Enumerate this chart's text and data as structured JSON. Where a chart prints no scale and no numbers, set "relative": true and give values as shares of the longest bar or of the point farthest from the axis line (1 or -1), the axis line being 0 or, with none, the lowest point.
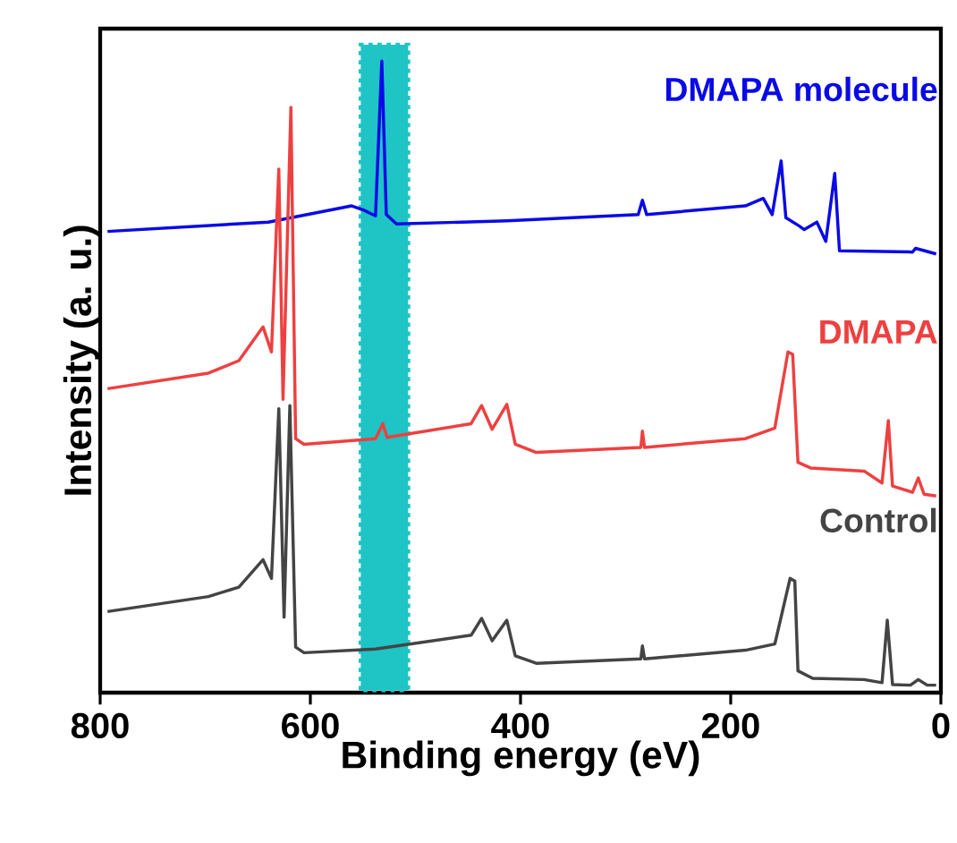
{
  "chart_data": {
    "type": "line",
    "relative": true,
    "xlabel": "Binding energy (eV)",
    "ylabel": "Intensity (a. u.)",
    "xlim": [
      800,
      0
    ],
    "xticks": [
      800,
      600,
      400,
      200,
      0
    ],
    "tick_labels": "x",
    "grid": false,
    "marker": "none",
    "line_style": "solid",
    "bands": [
      {
        "axis": "x",
        "from": 552,
        "to": 507,
        "color": "#1fc4c4"
      }
    ],
    "series": [
      {
        "name": "DMAPA molecule",
        "color": "#0a0ae6",
        "x": [
          793,
          640,
          560.6,
          549,
          538,
          532,
          527.7,
          518,
          413,
          288,
          284,
          280,
          186,
          169,
          160.5,
          152,
          147.5,
          135,
          130,
          118,
          109.5,
          101,
          96.5,
          27,
          24,
          4.5
        ],
        "values": [
          0.727,
          0.742,
          0.768,
          0.761,
          0.752,
          1.0,
          0.754,
          0.739,
          0.744,
          0.754,
          0.777,
          0.754,
          0.768,
          0.78,
          0.754,
          0.84,
          0.749,
          0.736,
          0.73,
          0.742,
          0.711,
          0.82,
          0.696,
          0.694,
          0.7,
          0.691
        ]
      },
      {
        "name": "DMAPA",
        "color": "#ee4040",
        "x": [
          793,
          697,
          668,
          645,
          637,
          630,
          626,
          618.5,
          614,
          606,
          538,
          531,
          527,
          447,
          437,
          427,
          413,
          405,
          385,
          285.5,
          284,
          282,
          186,
          158,
          145.5,
          141,
          136,
          124,
          73,
          56,
          50,
          46,
          27,
          21.5,
          16,
          4.5
        ],
        "values": [
          0.475,
          0.5,
          0.52,
          0.574,
          0.534,
          0.827,
          0.458,
          0.926,
          0.395,
          0.386,
          0.395,
          0.419,
          0.397,
          0.419,
          0.448,
          0.41,
          0.45,
          0.386,
          0.373,
          0.381,
          0.407,
          0.381,
          0.395,
          0.412,
          0.534,
          0.53,
          0.357,
          0.348,
          0.343,
          0.324,
          0.424,
          0.319,
          0.309,
          0.332,
          0.306,
          0.303
        ]
      },
      {
        "name": "Control",
        "color": "#444444",
        "x": [
          793,
          697,
          668,
          645,
          637,
          630,
          625,
          619.5,
          614,
          606,
          538,
          447,
          437,
          427,
          413,
          405,
          385,
          285.5,
          284,
          282,
          186,
          158,
          143.5,
          139,
          136,
          122,
          73,
          56,
          51,
          46,
          29,
          21.5,
          13,
          4.5
        ],
        "values": [
          0.118,
          0.142,
          0.157,
          0.201,
          0.171,
          0.443,
          0.109,
          0.448,
          0.061,
          0.052,
          0.058,
          0.08,
          0.107,
          0.071,
          0.104,
          0.047,
          0.035,
          0.042,
          0.063,
          0.042,
          0.056,
          0.066,
          0.171,
          0.167,
          0.023,
          0.011,
          0.009,
          0.004,
          0.104,
          0.001,
          0.0,
          0.009,
          0.0,
          0.0
        ]
      }
    ]
  }
}
